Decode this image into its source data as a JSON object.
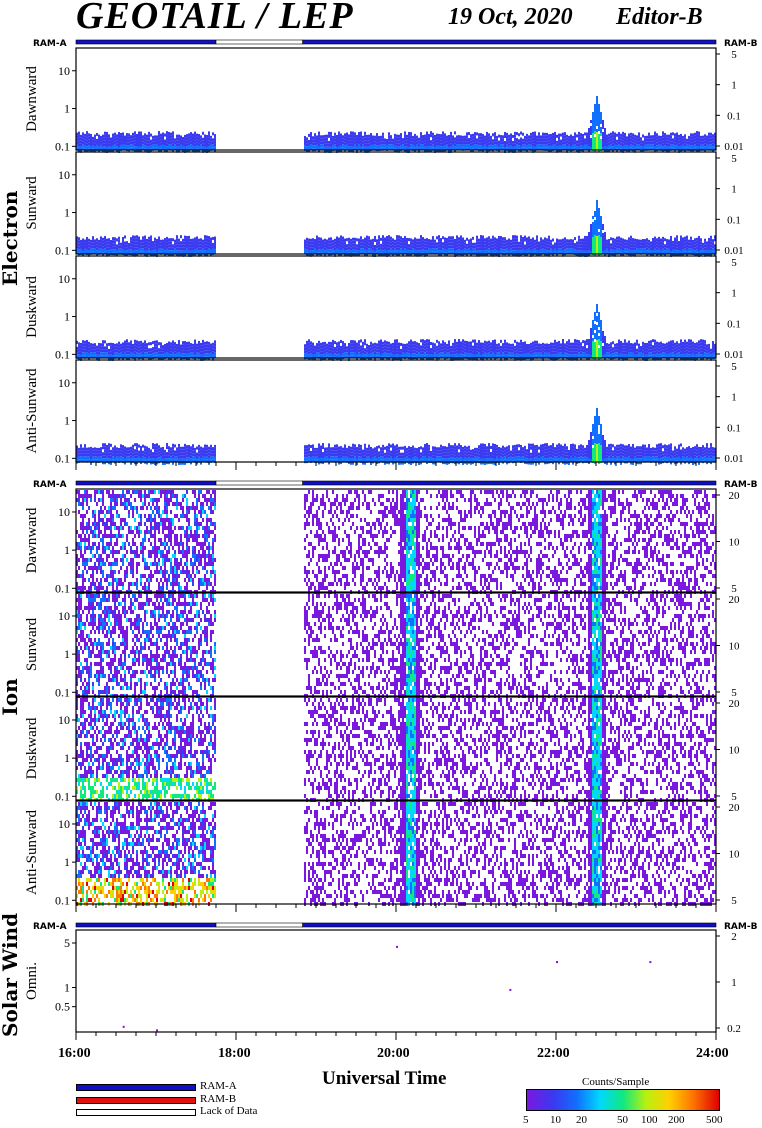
{
  "header": {
    "title": "GEOTAIL / LEP",
    "date": "19 Oct, 2020",
    "editor": "Editor-B"
  },
  "ram": {
    "a": "RAM-A",
    "b": "RAM-B"
  },
  "groups": {
    "electron": "Electron",
    "ion": "Ion",
    "solar_wind": "Solar Wind"
  },
  "x_axis": {
    "title": "Universal Time",
    "ticks": [
      "16:00",
      "18:00",
      "20:00",
      "22:00",
      "24:00"
    ]
  },
  "legend": {
    "ram_a": "RAM-A",
    "ram_b": "RAM-B",
    "lack": "Lack of Data",
    "colorbar_title": "Counts/Sample",
    "colorbar_ticks": [
      "5",
      "10",
      "20",
      "50",
      "100",
      "200",
      "500"
    ]
  },
  "colors": {
    "ram_a": "#1010c8",
    "ram_b": "#e01010",
    "lack": "#ffffff"
  },
  "chart_data": [
    {
      "type": "heatmap",
      "group": "Electron",
      "panel": "Dawnward",
      "ylabel": "Dawnward",
      "yscale": "log",
      "ylim": [
        0.08,
        40
      ],
      "yticks_left": [
        "0.1",
        "1",
        "10"
      ],
      "yticks_right": [
        "0.01",
        "0.1",
        "1",
        "5"
      ],
      "time_range": [
        "16:00",
        "24:00"
      ],
      "data_gaps": [
        [
          "17:45",
          "18:50"
        ]
      ],
      "enhancements": [
        {
          "time": "22:30",
          "peak": 2
        }
      ]
    },
    {
      "type": "heatmap",
      "group": "Electron",
      "panel": "Sunward",
      "ylabel": "Sunward",
      "yscale": "log",
      "ylim": [
        0.08,
        40
      ],
      "yticks_left": [
        "0.1",
        "1",
        "10"
      ],
      "yticks_right": [
        "0.01",
        "0.1",
        "1",
        "5"
      ],
      "time_range": [
        "16:00",
        "24:00"
      ],
      "data_gaps": [
        [
          "17:45",
          "18:50"
        ]
      ],
      "enhancements": [
        {
          "time": "22:30",
          "peak": 2
        }
      ]
    },
    {
      "type": "heatmap",
      "group": "Electron",
      "panel": "Duskward",
      "ylabel": "Duskward",
      "yscale": "log",
      "ylim": [
        0.08,
        40
      ],
      "yticks_left": [
        "0.1",
        "1",
        "10"
      ],
      "yticks_right": [
        "0.01",
        "0.1",
        "1",
        "5"
      ],
      "time_range": [
        "16:00",
        "24:00"
      ],
      "data_gaps": [
        [
          "17:45",
          "18:50"
        ]
      ],
      "enhancements": [
        {
          "time": "22:30",
          "peak": 2
        }
      ]
    },
    {
      "type": "heatmap",
      "group": "Electron",
      "panel": "Anti-Sunward",
      "ylabel": "Anti-Sunward",
      "yscale": "log",
      "ylim": [
        0.08,
        40
      ],
      "yticks_left": [
        "0.1",
        "1",
        "10"
      ],
      "yticks_right": [
        "0.01",
        "0.1",
        "1",
        "5"
      ],
      "time_range": [
        "16:00",
        "24:00"
      ],
      "data_gaps": [
        [
          "17:45",
          "18:50"
        ]
      ],
      "enhancements": [
        {
          "time": "22:30",
          "peak": 2
        }
      ]
    },
    {
      "type": "heatmap",
      "group": "Ion",
      "panel": "Dawnward",
      "ylabel": "Dawnward",
      "yscale": "log",
      "ylim": [
        0.08,
        40
      ],
      "yticks_left": [
        "0.1",
        "1",
        "10"
      ],
      "yticks_right": [
        "5",
        "10",
        "20"
      ],
      "time_range": [
        "16:00",
        "24:00"
      ],
      "data_gaps": [
        [
          "17:45",
          "18:50"
        ]
      ],
      "enhancements": [
        {
          "time": "20:10"
        },
        {
          "time": "22:30"
        }
      ]
    },
    {
      "type": "heatmap",
      "group": "Ion",
      "panel": "Sunward",
      "ylabel": "Sunward",
      "yscale": "log",
      "ylim": [
        0.08,
        40
      ],
      "yticks_left": [
        "0.1",
        "1",
        "10"
      ],
      "yticks_right": [
        "5",
        "10",
        "20"
      ],
      "time_range": [
        "16:00",
        "24:00"
      ],
      "data_gaps": [
        [
          "17:45",
          "18:50"
        ]
      ],
      "enhancements": [
        {
          "time": "20:10"
        },
        {
          "time": "22:30"
        }
      ]
    },
    {
      "type": "heatmap",
      "group": "Ion",
      "panel": "Duskward",
      "ylabel": "Duskward",
      "yscale": "log",
      "ylim": [
        0.08,
        40
      ],
      "yticks_left": [
        "0.1",
        "1",
        "10"
      ],
      "yticks_right": [
        "5",
        "10",
        "20"
      ],
      "time_range": [
        "16:00",
        "24:00"
      ],
      "data_gaps": [
        [
          "17:45",
          "18:50"
        ]
      ],
      "enhancements": [
        {
          "time": "20:10"
        },
        {
          "time": "22:30"
        }
      ]
    },
    {
      "type": "heatmap",
      "group": "Ion",
      "panel": "Anti-Sunward",
      "ylabel": "Anti-Sunward",
      "yscale": "log",
      "ylim": [
        0.08,
        40
      ],
      "yticks_left": [
        "0.1",
        "1",
        "10"
      ],
      "yticks_right": [
        "5",
        "10",
        "20"
      ],
      "time_range": [
        "16:00",
        "24:00"
      ],
      "data_gaps": [
        [
          "17:45",
          "18:50"
        ]
      ],
      "enhancements": [
        {
          "time": "20:10"
        },
        {
          "time": "22:30"
        }
      ]
    },
    {
      "type": "heatmap",
      "group": "Solar Wind",
      "panel": "Omni.",
      "ylabel": "Omni.",
      "yscale": "log",
      "ylim": [
        0.2,
        8
      ],
      "yticks_left": [
        "0.5",
        "1",
        "5"
      ],
      "yticks_right": [
        "0.2",
        "1",
        "2"
      ],
      "time_range": [
        "16:00",
        "24:00"
      ],
      "data_gaps": [
        [
          "17:45",
          "18:50"
        ]
      ],
      "points": [
        {
          "time": "16:35",
          "y": 0.25
        },
        {
          "time": "17:00",
          "y": 0.22
        },
        {
          "time": "20:00",
          "y": 4.5
        },
        {
          "time": "21:25",
          "y": 0.95
        },
        {
          "time": "22:00",
          "y": 2.6
        },
        {
          "time": "23:10",
          "y": 2.6
        }
      ]
    }
  ]
}
